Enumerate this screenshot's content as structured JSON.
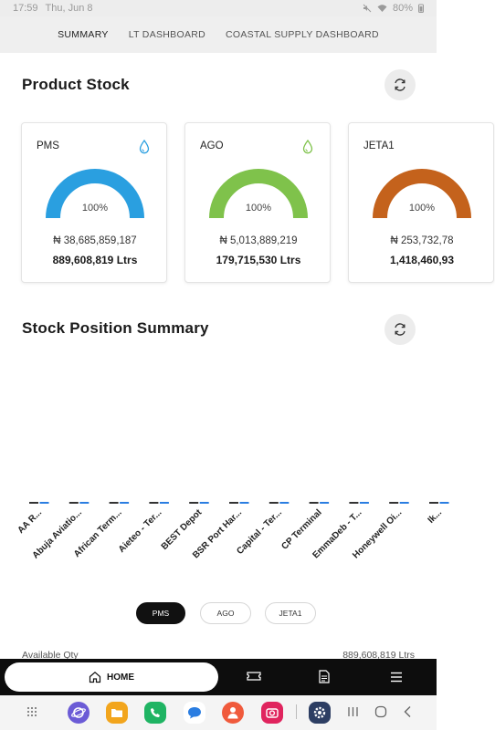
{
  "status_bar": {
    "time": "17:59",
    "date": "Thu, Jun 8",
    "battery": "80%"
  },
  "top_tabs": [
    {
      "label": "SUMMARY",
      "active": true
    },
    {
      "label": "LT DASHBOARD",
      "active": false
    },
    {
      "label": "COASTAL SUPPLY DASHBOARD",
      "active": false
    }
  ],
  "product_stock": {
    "title": "Product Stock",
    "cards": [
      {
        "name": "PMS",
        "percent": "100%",
        "percent_value": 100,
        "amount": "₦ 38,685,859,187",
        "qty": "889,608,819 Ltrs",
        "color": "#2a9fe0"
      },
      {
        "name": "AGO",
        "percent": "100%",
        "percent_value": 100,
        "amount": "₦ 5,013,889,219",
        "qty": "179,715,530 Ltrs",
        "color": "#7fc24b"
      },
      {
        "name": "JETA1",
        "percent": "100%",
        "percent_value": 100,
        "amount": "₦ 253,732,78",
        "qty": "1,418,460,93",
        "color": "#c4621c"
      }
    ]
  },
  "stock_position": {
    "title": "Stock Position Summary"
  },
  "chart_data": {
    "type": "bar",
    "categories": [
      "AA R...",
      "Abuja Aviatio...",
      "African Term...",
      "Aieteo - Ter...",
      "BEST Depot",
      "BSR Port Har...",
      "Capital - Ter...",
      "CP Terminal",
      "EmmaDeb - T...",
      "Honeywell Oi...",
      "Ik..."
    ],
    "series_colors": [
      "#333333",
      "#2a7de1"
    ]
  },
  "product_filter": [
    {
      "label": "PMS",
      "active": true
    },
    {
      "label": "AGO",
      "active": false
    },
    {
      "label": "JETA1",
      "active": false
    }
  ],
  "available_row": {
    "label": "Available Qty",
    "value": "889,608,819 Ltrs"
  },
  "bottom_nav": {
    "home_label": "HOME"
  }
}
